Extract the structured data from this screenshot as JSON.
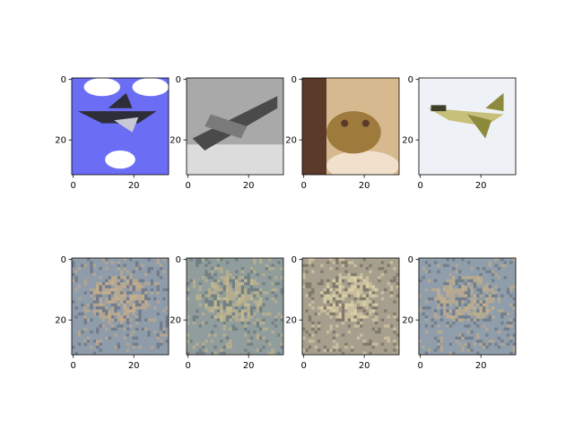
{
  "chart_data": {
    "type": "image-grid",
    "rows": 2,
    "cols": 4,
    "image_size": [
      32,
      32
    ],
    "xlim": [
      0,
      31
    ],
    "ylim": [
      31,
      0
    ],
    "x_ticks": [
      0,
      20
    ],
    "y_ticks": [
      0,
      20
    ],
    "panels": [
      {
        "row": 0,
        "col": 0,
        "content": "airplane",
        "background": "#6b6ef4",
        "palette": [
          "#6b6ef4",
          "#ffffff",
          "#2e2e3a",
          "#c9c9d6"
        ]
      },
      {
        "row": 0,
        "col": 1,
        "content": "airplane",
        "background": "#a9a9a9",
        "palette": [
          "#b5b5b5",
          "#dcdcdc",
          "#4a4a4a",
          "#7a7a7a"
        ]
      },
      {
        "row": 0,
        "col": 2,
        "content": "frog",
        "background": "#d7b98f",
        "palette": [
          "#e3c9a2",
          "#5b3a2a",
          "#9e7a3c",
          "#f0e0cc"
        ]
      },
      {
        "row": 0,
        "col": 3,
        "content": "airplane",
        "background": "#eef1f5",
        "palette": [
          "#f2f4f8",
          "#8d8a3e",
          "#c7c07a",
          "#ffffff"
        ]
      },
      {
        "row": 1,
        "col": 0,
        "content": "reconstruction",
        "background": "#8e9aa9",
        "palette": [
          "#8f9caa",
          "#b8a88f",
          "#6f7888",
          "#c9b08a"
        ]
      },
      {
        "row": 1,
        "col": 1,
        "content": "reconstruction",
        "background": "#909c9c",
        "palette": [
          "#929e9c",
          "#b9b08e",
          "#707c80",
          "#c8bb90"
        ]
      },
      {
        "row": 1,
        "col": 2,
        "content": "reconstruction",
        "background": "#a29c8e",
        "palette": [
          "#a8a08e",
          "#cfc3a0",
          "#7d7466",
          "#e0d6a8"
        ]
      },
      {
        "row": 1,
        "col": 3,
        "content": "reconstruction",
        "background": "#8f9ba9",
        "palette": [
          "#909daa",
          "#b9aa8f",
          "#6f7a88",
          "#c7b089"
        ]
      }
    ]
  }
}
